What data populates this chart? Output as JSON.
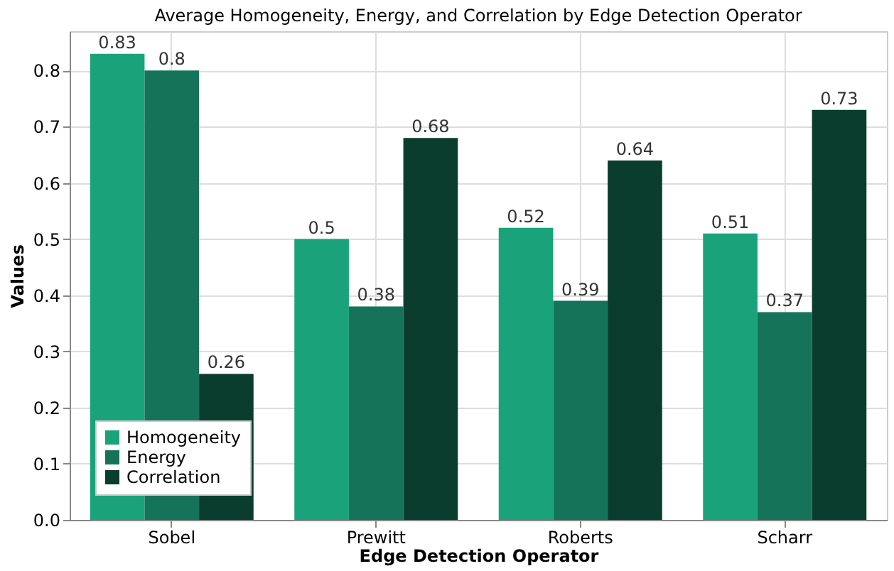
{
  "chart_data": {
    "type": "bar",
    "title": "Average Homogeneity, Energy, and Correlation by Edge Detection Operator",
    "xlabel": "Edge Detection Operator",
    "ylabel": "Values",
    "categories": [
      "Sobel",
      "Prewitt",
      "Roberts",
      "Scharr"
    ],
    "series": [
      {
        "name": "Homogeneity",
        "color": "#1aa37a",
        "values": [
          0.83,
          0.5,
          0.52,
          0.51
        ]
      },
      {
        "name": "Energy",
        "color": "#15735a",
        "values": [
          0.8,
          0.38,
          0.39,
          0.37
        ]
      },
      {
        "name": "Correlation",
        "color": "#0a3d2e",
        "values": [
          0.26,
          0.68,
          0.64,
          0.73
        ]
      }
    ],
    "ylim": [
      0,
      0.87
    ],
    "yticks": [
      {
        "value": 0,
        "label": "0.0"
      },
      0.1,
      0.2,
      0.3,
      0.4,
      0.5,
      0.6,
      0.7,
      0.8
    ],
    "grid": true,
    "legend": "bottom left",
    "data_labels": true
  }
}
